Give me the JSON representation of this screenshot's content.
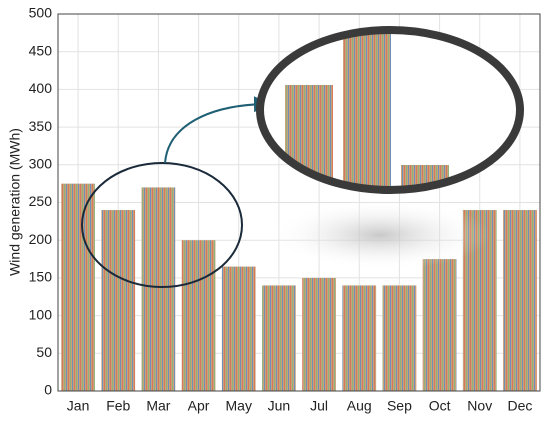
{
  "chart_data": {
    "type": "bar",
    "y_label": "Wind generation (MWh)",
    "categories": [
      "Jan",
      "Feb",
      "Mar",
      "Apr",
      "May",
      "Jun",
      "Jul",
      "Aug",
      "Sep",
      "Oct",
      "Nov",
      "Dec"
    ],
    "values": [
      275,
      240,
      270,
      200,
      165,
      140,
      150,
      140,
      140,
      175,
      240,
      240
    ],
    "ylim": [
      0,
      500
    ],
    "yticks": [
      0,
      50,
      100,
      150,
      200,
      250,
      300,
      350,
      400,
      450,
      500
    ],
    "grid": true
  }
}
